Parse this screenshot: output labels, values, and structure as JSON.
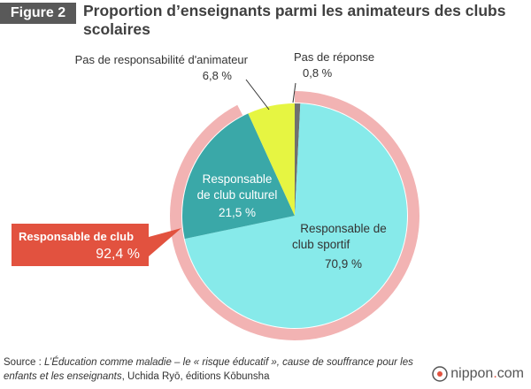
{
  "header": {
    "badge": "Figure 2",
    "title_line1": "Proportion d’enseignants parmi les animateurs des clubs",
    "title_line2": "scolaires"
  },
  "chart_data": {
    "type": "pie",
    "slices": [
      {
        "name_lines": [
          "Pas de réponse"
        ],
        "value": 0.8,
        "value_label": "0,8 %",
        "color": "#707070"
      },
      {
        "name_lines": [
          "Responsable de",
          "club sportif"
        ],
        "value": 70.9,
        "value_label": "70,9 %",
        "color": "#87eaea"
      },
      {
        "name_lines": [
          "Responsable",
          "de club culturel"
        ],
        "value": 21.5,
        "value_label": "21,5 %",
        "color": "#3aa8a8"
      },
      {
        "name_lines": [
          "Pas de responsabilité d'animateur"
        ],
        "value": 6.8,
        "value_label": "6,8 %",
        "color": "#e6f542"
      }
    ],
    "outer_ring": {
      "label": "Responsable de club",
      "value": 92.4,
      "value_label": "92,4 %",
      "color": "#f2b3b3"
    }
  },
  "callout": {
    "label": "Responsable de club",
    "value": "92,4 %",
    "color": "#e2523f"
  },
  "footer": {
    "source_prefix": "Source : ",
    "source_title": "L’Éducation comme maladie – le « risque éducatif », cause de souffrance pour les enfants et les enseignants",
    "source_rest": ", Uchida Ryō, éditions Kōbunsha",
    "brand_name": "nippon",
    "brand_dot": ".",
    "brand_tld": "com"
  }
}
